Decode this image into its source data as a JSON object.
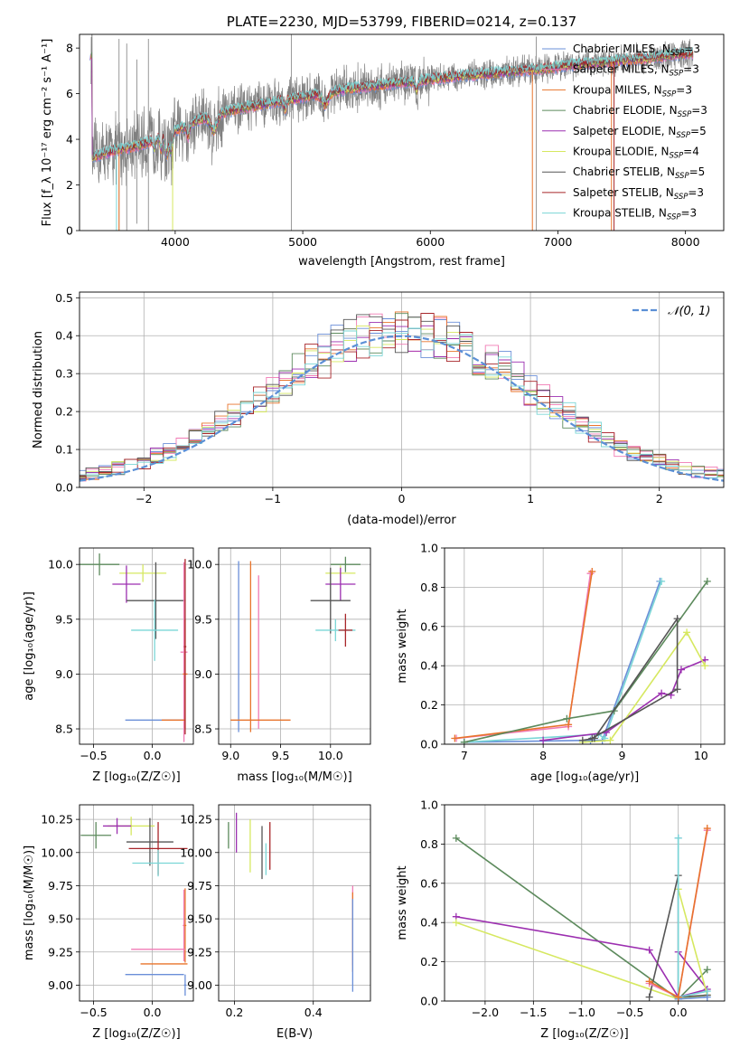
{
  "figure": {
    "background": "#ffffff"
  },
  "chart_data": [
    {
      "id": "spectrum",
      "type": "line",
      "title": "PLATE=2230, MJD=53799, FIBERID=0214, z=0.137",
      "xlabel": "wavelength [Angstrom, rest frame]",
      "ylabel": "Flux [f_λ 10⁻¹⁷ erg cm⁻² s⁻¹ A⁻¹]",
      "xlim": [
        3250,
        8300
      ],
      "ylim": [
        0,
        8.6
      ],
      "xticks": [
        4000,
        5000,
        6000,
        7000,
        8000
      ],
      "yticks": [
        0,
        2,
        4,
        6,
        8
      ],
      "grid": false,
      "legend_position": "top-right",
      "data_color": "#808080",
      "continuum": {
        "x": [
          3350,
          3450,
          3600,
          3700,
          3800,
          3900,
          4000,
          4100,
          4200,
          4300,
          4400,
          4500,
          4700,
          4900,
          5100,
          5300,
          5500,
          5700,
          5900,
          6100,
          6300,
          6500,
          6700,
          6900,
          7100,
          7300,
          7500,
          7700,
          7900,
          8050
        ],
        "y": [
          3.2,
          3.4,
          3.6,
          3.7,
          3.9,
          4.1,
          4.4,
          4.6,
          4.9,
          5.0,
          5.2,
          5.35,
          5.55,
          5.75,
          5.95,
          6.15,
          6.3,
          6.45,
          6.55,
          6.7,
          6.8,
          6.9,
          7.0,
          7.1,
          7.25,
          7.35,
          7.45,
          7.55,
          7.7,
          7.75
        ]
      },
      "series": [
        {
          "name": "Chabrier MILES, N_SSP=3",
          "color": "#6a8fd8"
        },
        {
          "name": "Salpeter MILES, N_SSP=3",
          "color": "#f07ab4"
        },
        {
          "name": "Kroupa MILES, N_SSP=3",
          "color": "#e8742c"
        },
        {
          "name": "Chabrier ELODIE, N_SSP=3",
          "color": "#5c8a5c"
        },
        {
          "name": "Salpeter ELODIE, N_SSP=5",
          "color": "#9c2fb0"
        },
        {
          "name": "Kroupa ELODIE, N_SSP=4",
          "color": "#d6e860"
        },
        {
          "name": "Chabrier STELIB, N_SSP=5",
          "color": "#555555"
        },
        {
          "name": "Salpeter STELIB, N_SSP=3",
          "color": "#a8262a"
        },
        {
          "name": "Kroupa STELIB, N_SSP=3",
          "color": "#7ad6d6"
        }
      ],
      "legend": [
        {
          "prefix": "Chabrier MILES, N",
          "sub": "SSP",
          "suffix": "=3",
          "color": "#6a8fd8"
        },
        {
          "prefix": "Salpeter MILES, N",
          "sub": "SSP",
          "suffix": "=3",
          "color": "#f07ab4"
        },
        {
          "prefix": "Kroupa MILES, N",
          "sub": "SSP",
          "suffix": "=3",
          "color": "#e8742c"
        },
        {
          "prefix": "Chabrier ELODIE, N",
          "sub": "SSP",
          "suffix": "=3",
          "color": "#5c8a5c"
        },
        {
          "prefix": "Salpeter ELODIE, N",
          "sub": "SSP",
          "suffix": "=5",
          "color": "#9c2fb0"
        },
        {
          "prefix": "Kroupa ELODIE, N",
          "sub": "SSP",
          "suffix": "=4",
          "color": "#d6e860"
        },
        {
          "prefix": "Chabrier STELIB, N",
          "sub": "SSP",
          "suffix": "=5",
          "color": "#555555"
        },
        {
          "prefix": "Salpeter STELIB, N",
          "sub": "SSP",
          "suffix": "=3",
          "color": "#a8262a"
        },
        {
          "prefix": "Kroupa STELIB, N",
          "sub": "SSP",
          "suffix": "=3",
          "color": "#7ad6d6"
        }
      ]
    },
    {
      "id": "residuals",
      "type": "line",
      "xlabel": "(data-model)/error",
      "ylabel": "Normed distribution",
      "xlim": [
        -2.5,
        2.5
      ],
      "ylim": [
        0,
        0.515
      ],
      "xticks": [
        -2,
        -1,
        0,
        1,
        2
      ],
      "yticks": [
        0.0,
        0.1,
        0.2,
        0.3,
        0.4,
        0.5
      ],
      "grid": true,
      "legend_position": "top-right",
      "reference": {
        "name": "𝒩(0, 1)",
        "color": "#5b8fd6",
        "style": "dashed"
      },
      "histogram_bin_width": 0.1,
      "series_colors": [
        "#6a8fd8",
        "#f07ab4",
        "#e8742c",
        "#5c8a5c",
        "#9c2fb0",
        "#d6e860",
        "#555555",
        "#a8262a",
        "#7ad6d6"
      ]
    },
    {
      "id": "age-vs-Z",
      "type": "scatter",
      "xlabel": "Z [log₁₀(Z/Z☉)]",
      "ylabel": "age  [log₁₀(age/yr)]",
      "xlim": [
        -0.62,
        0.35
      ],
      "ylim": [
        8.36,
        10.15
      ],
      "xticks": [
        -0.5,
        0.0
      ],
      "yticks": [
        8.5,
        9.0,
        9.5,
        10.0
      ],
      "grid": true,
      "points": [
        {
          "x": -0.45,
          "y": 10.0,
          "xerr": 0.17,
          "yerr": 0.1,
          "color": "#5c8a5c"
        },
        {
          "x": -0.08,
          "y": 9.92,
          "xerr": 0.2,
          "yerr": 0.08,
          "color": "#d6e860"
        },
        {
          "x": -0.22,
          "y": 9.82,
          "xerr": 0.12,
          "yerr": 0.17,
          "color": "#9c2fb0"
        },
        {
          "x": 0.03,
          "y": 9.67,
          "xerr": 0.25,
          "yerr": 0.35,
          "color": "#555555"
        },
        {
          "x": 0.02,
          "y": 9.4,
          "xerr": 0.2,
          "yerr": 0.28,
          "color": "#7ad6d6"
        },
        {
          "x": 0.27,
          "y": 9.2,
          "xerr": 0.03,
          "yerr": 0.82,
          "color": "#f07ab4"
        },
        {
          "x": 0.28,
          "y": 9.0,
          "xerr": 0.02,
          "yerr": 0.5,
          "color": "#e8742c"
        },
        {
          "x": 0.02,
          "y": 8.58,
          "xerr": 0.25,
          "yerr": 0.0,
          "color": "#6a8fd8"
        },
        {
          "x": 0.18,
          "y": 8.58,
          "xerr": 0.1,
          "yerr": 0.0,
          "color": "#e8742c"
        },
        {
          "x": 0.28,
          "y": 9.25,
          "xerr": 0.01,
          "yerr": 0.8,
          "color": "#a8262a"
        }
      ]
    },
    {
      "id": "age-vs-mass",
      "type": "scatter",
      "xlabel": "mass [log₁₀(M/M☉)]",
      "ylabel": "",
      "xlim": [
        8.88,
        10.4
      ],
      "ylim": [
        8.36,
        10.15
      ],
      "xticks": [
        9.0,
        9.5,
        10.0
      ],
      "yticks": [
        8.5,
        9.0,
        9.5,
        10.0
      ],
      "grid": true,
      "points": [
        {
          "x": 10.15,
          "y": 10.0,
          "xerr": 0.15,
          "yerr": 0.07,
          "color": "#5c8a5c"
        },
        {
          "x": 10.1,
          "y": 9.92,
          "xerr": 0.15,
          "yerr": 0.07,
          "color": "#d6e860"
        },
        {
          "x": 10.1,
          "y": 9.82,
          "xerr": 0.15,
          "yerr": 0.15,
          "color": "#9c2fb0"
        },
        {
          "x": 10.0,
          "y": 9.67,
          "xerr": 0.2,
          "yerr": 0.3,
          "color": "#555555"
        },
        {
          "x": 10.05,
          "y": 9.4,
          "xerr": 0.2,
          "yerr": 0.1,
          "color": "#7ad6d6"
        },
        {
          "x": 10.15,
          "y": 9.4,
          "xerr": 0.07,
          "yerr": 0.15,
          "color": "#a8262a"
        },
        {
          "x": 9.08,
          "y": 9.25,
          "xerr": 0.0,
          "yerr": 0.78,
          "color": "#6a8fd8"
        },
        {
          "x": 9.2,
          "y": 9.25,
          "xerr": 0.0,
          "yerr": 0.78,
          "color": "#e8742c"
        },
        {
          "x": 9.28,
          "y": 9.2,
          "xerr": 0.0,
          "yerr": 0.7,
          "color": "#f07ab4"
        },
        {
          "x": 9.3,
          "y": 8.58,
          "xerr": 0.3,
          "yerr": 0.0,
          "color": "#e8742c"
        }
      ]
    },
    {
      "id": "weight-vs-age",
      "type": "line",
      "xlabel": "age  [log₁₀(age/yr)]",
      "ylabel": "mass weight",
      "xlim": [
        6.75,
        10.3
      ],
      "ylim": [
        0,
        1.0
      ],
      "xticks": [
        7,
        8,
        9,
        10
      ],
      "yticks": [
        0.0,
        0.2,
        0.4,
        0.6,
        0.8,
        1.0
      ],
      "grid": true,
      "series": [
        {
          "color": "#6a8fd8",
          "points": [
            [
              7.0,
              0.01
            ],
            [
              8.6,
              0.02
            ],
            [
              8.75,
              0.02
            ],
            [
              9.48,
              0.83
            ]
          ]
        },
        {
          "color": "#7ad6d6",
          "points": [
            [
              7.0,
              0.01
            ],
            [
              8.7,
              0.05
            ],
            [
              8.78,
              0.03
            ],
            [
              9.5,
              0.83
            ]
          ]
        },
        {
          "color": "#f07ab4",
          "points": [
            [
              6.9,
              0.03
            ],
            [
              8.32,
              0.09
            ],
            [
              8.6,
              0.87
            ]
          ]
        },
        {
          "color": "#e8742c",
          "points": [
            [
              6.88,
              0.03
            ],
            [
              8.32,
              0.1
            ],
            [
              8.62,
              0.88
            ]
          ]
        },
        {
          "color": "#5c8a5c",
          "points": [
            [
              7.0,
              0.01
            ],
            [
              8.3,
              0.13
            ],
            [
              8.9,
              0.17
            ],
            [
              10.08,
              0.83
            ]
          ]
        },
        {
          "color": "#9c2fb0",
          "points": [
            [
              8.0,
              0.02
            ],
            [
              8.8,
              0.06
            ],
            [
              9.5,
              0.26
            ],
            [
              9.62,
              0.25
            ],
            [
              9.75,
              0.38
            ],
            [
              10.05,
              0.43
            ]
          ]
        },
        {
          "color": "#d6e860",
          "points": [
            [
              8.5,
              0.01
            ],
            [
              8.85,
              0.02
            ],
            [
              9.82,
              0.57
            ],
            [
              10.05,
              0.4
            ]
          ]
        },
        {
          "color": "#555555",
          "points": [
            [
              8.5,
              0.02
            ],
            [
              8.65,
              0.03
            ],
            [
              9.7,
              0.64
            ],
            [
              9.7,
              0.28
            ],
            [
              8.62,
              0.03
            ]
          ]
        }
      ]
    },
    {
      "id": "mass-vs-Z",
      "type": "scatter",
      "xlabel": "Z [log₁₀(Z/Z☉)]",
      "ylabel": "mass [log₁₀(M/M☉)]",
      "xlim": [
        -0.62,
        0.35
      ],
      "ylim": [
        8.88,
        10.36
      ],
      "xticks": [
        -0.5,
        0.0
      ],
      "yticks": [
        9.0,
        9.25,
        9.5,
        9.75,
        10.0,
        10.25
      ],
      "grid": true,
      "points": [
        {
          "x": -0.48,
          "y": 10.13,
          "xerr": 0.13,
          "yerr": 0.1,
          "color": "#5c8a5c"
        },
        {
          "x": -0.18,
          "y": 10.2,
          "xerr": 0.2,
          "yerr": 0.07,
          "color": "#d6e860"
        },
        {
          "x": -0.3,
          "y": 10.2,
          "xerr": 0.12,
          "yerr": 0.06,
          "color": "#9c2fb0"
        },
        {
          "x": -0.02,
          "y": 10.08,
          "xerr": 0.2,
          "yerr": 0.18,
          "color": "#555555"
        },
        {
          "x": 0.05,
          "y": 10.03,
          "xerr": 0.25,
          "yerr": 0.2,
          "color": "#a8262a"
        },
        {
          "x": 0.05,
          "y": 9.92,
          "xerr": 0.22,
          "yerr": 0.1,
          "color": "#7ad6d6"
        },
        {
          "x": 0.27,
          "y": 9.45,
          "xerr": 0.01,
          "yerr": 0.27,
          "color": "#f07ab4"
        },
        {
          "x": 0.28,
          "y": 9.45,
          "xerr": 0.01,
          "yerr": 0.28,
          "color": "#e8742c"
        },
        {
          "x": 0.05,
          "y": 9.27,
          "xerr": 0.23,
          "yerr": 0.0,
          "color": "#f07ab4"
        },
        {
          "x": 0.1,
          "y": 9.16,
          "xerr": 0.2,
          "yerr": 0.0,
          "color": "#e8742c"
        },
        {
          "x": 0.02,
          "y": 9.08,
          "xerr": 0.25,
          "yerr": 0.0,
          "color": "#6a8fd8"
        },
        {
          "x": 0.28,
          "y": 9.0,
          "xerr": 0.01,
          "yerr": 0.08,
          "color": "#6a8fd8"
        }
      ]
    },
    {
      "id": "mass-vs-EBV",
      "type": "scatter",
      "xlabel": "E(B-V)",
      "ylabel": "",
      "xlim": [
        0.16,
        0.545
      ],
      "ylim": [
        8.88,
        10.36
      ],
      "xticks": [
        0.2,
        0.4
      ],
      "yticks": [
        9.0,
        9.25,
        9.5,
        9.75,
        10.0,
        10.25
      ],
      "grid": true,
      "points": [
        {
          "x": 0.185,
          "y": 10.13,
          "xerr": 0,
          "yerr": 0.1,
          "color": "#5c8a5c"
        },
        {
          "x": 0.205,
          "y": 10.15,
          "xerr": 0,
          "yerr": 0.15,
          "color": "#9c2fb0"
        },
        {
          "x": 0.24,
          "y": 10.05,
          "xerr": 0,
          "yerr": 0.2,
          "color": "#d6e860"
        },
        {
          "x": 0.27,
          "y": 10.0,
          "xerr": 0,
          "yerr": 0.2,
          "color": "#555555"
        },
        {
          "x": 0.29,
          "y": 10.05,
          "xerr": 0,
          "yerr": 0.18,
          "color": "#a8262a"
        },
        {
          "x": 0.28,
          "y": 9.95,
          "xerr": 0,
          "yerr": 0.12,
          "color": "#7ad6d6"
        },
        {
          "x": 0.5,
          "y": 9.45,
          "xerr": 0,
          "yerr": 0.3,
          "color": "#f07ab4"
        },
        {
          "x": 0.5,
          "y": 9.4,
          "xerr": 0,
          "yerr": 0.3,
          "color": "#e8742c"
        },
        {
          "x": 0.5,
          "y": 9.3,
          "xerr": 0,
          "yerr": 0.35,
          "color": "#6a8fd8"
        }
      ]
    },
    {
      "id": "weight-vs-Z",
      "type": "line",
      "xlabel": "Z [log₁₀(Z/Z☉)]",
      "ylabel": "mass weight",
      "xlim": [
        -2.42,
        0.48
      ],
      "ylim": [
        0,
        1.0
      ],
      "xticks": [
        -2.0,
        -1.5,
        -1.0,
        -0.5,
        0.0
      ],
      "yticks": [
        0.0,
        0.2,
        0.4,
        0.6,
        0.8,
        1.0
      ],
      "grid": true,
      "series": [
        {
          "color": "#5c8a5c",
          "points": [
            [
              -2.3,
              0.83
            ],
            [
              0.0,
              0.01
            ],
            [
              0.3,
              0.16
            ],
            [
              0.0,
              0.01
            ]
          ]
        },
        {
          "color": "#9c2fb0",
          "points": [
            [
              -2.3,
              0.43
            ],
            [
              -0.3,
              0.26
            ],
            [
              0.0,
              0.02
            ],
            [
              0.3,
              0.06
            ],
            [
              0.0,
              0.25
            ]
          ]
        },
        {
          "color": "#d6e860",
          "points": [
            [
              -2.3,
              0.4
            ],
            [
              0.0,
              0.01
            ],
            [
              0.3,
              0.03
            ],
            [
              0.0,
              0.57
            ]
          ]
        },
        {
          "color": "#555555",
          "points": [
            [
              -0.3,
              0.02
            ],
            [
              0.0,
              0.64
            ],
            [
              0.0,
              0.02
            ],
            [
              0.3,
              0.03
            ]
          ]
        },
        {
          "color": "#6a8fd8",
          "points": [
            [
              0.0,
              0.83
            ],
            [
              0.0,
              0.01
            ],
            [
              0.3,
              0.02
            ]
          ]
        },
        {
          "color": "#7ad6d6",
          "points": [
            [
              0.0,
              0.83
            ],
            [
              0.0,
              0.02
            ],
            [
              0.3,
              0.05
            ]
          ]
        },
        {
          "color": "#f07ab4",
          "points": [
            [
              -0.3,
              0.09
            ],
            [
              0.0,
              0.02
            ],
            [
              0.3,
              0.87
            ]
          ]
        },
        {
          "color": "#e8742c",
          "points": [
            [
              -0.3,
              0.1
            ],
            [
              0.0,
              0.02
            ],
            [
              0.3,
              0.88
            ]
          ]
        }
      ]
    }
  ]
}
